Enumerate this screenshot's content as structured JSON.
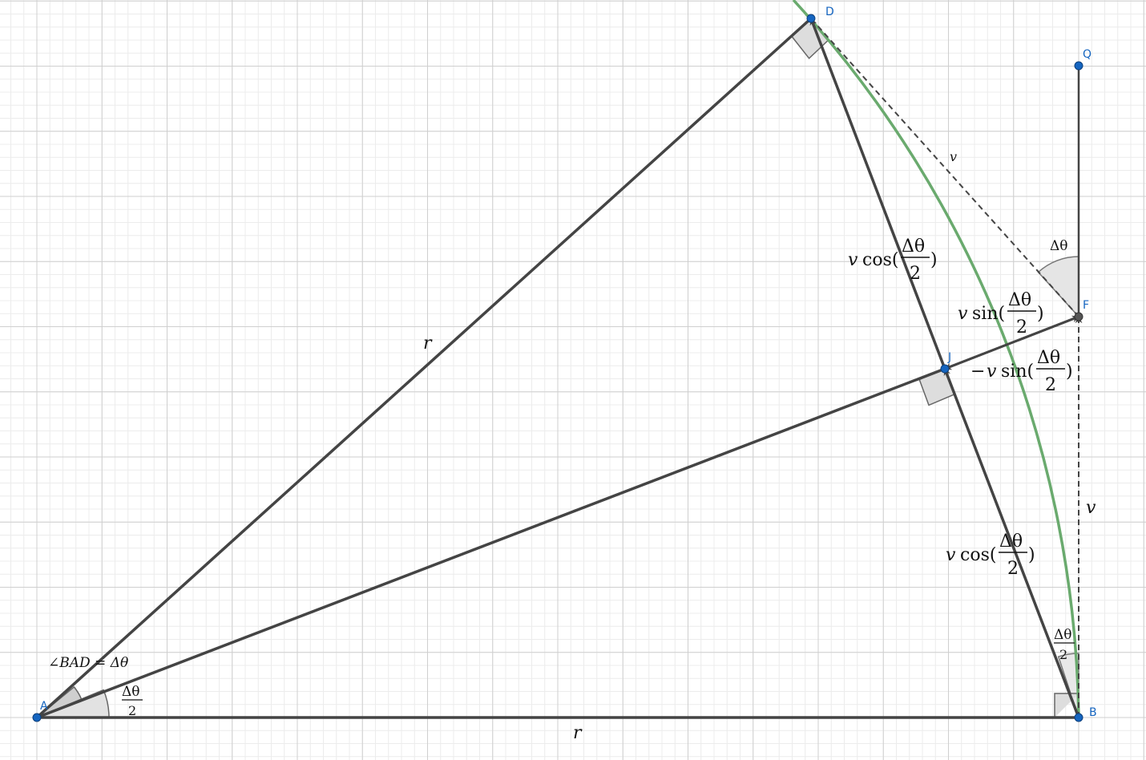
{
  "points": {
    "A": "A",
    "B": "B",
    "D": "D",
    "F": "F",
    "J": "J",
    "Q": "Q"
  },
  "labels": {
    "r": "r",
    "v": "v",
    "cos": "cos(",
    "sin": "sin(",
    "minus": "−",
    "close": ")",
    "delta_theta": "Δθ",
    "two": "2",
    "angle_bad": "∠BAD = Δθ"
  },
  "colors": {
    "segment": "#444444",
    "arc": "#6aaa6e",
    "point": "#1565c0",
    "grid_minor": "#ececec",
    "grid_major": "#cfcfcf",
    "angle_fill": "#d9d9d9"
  }
}
